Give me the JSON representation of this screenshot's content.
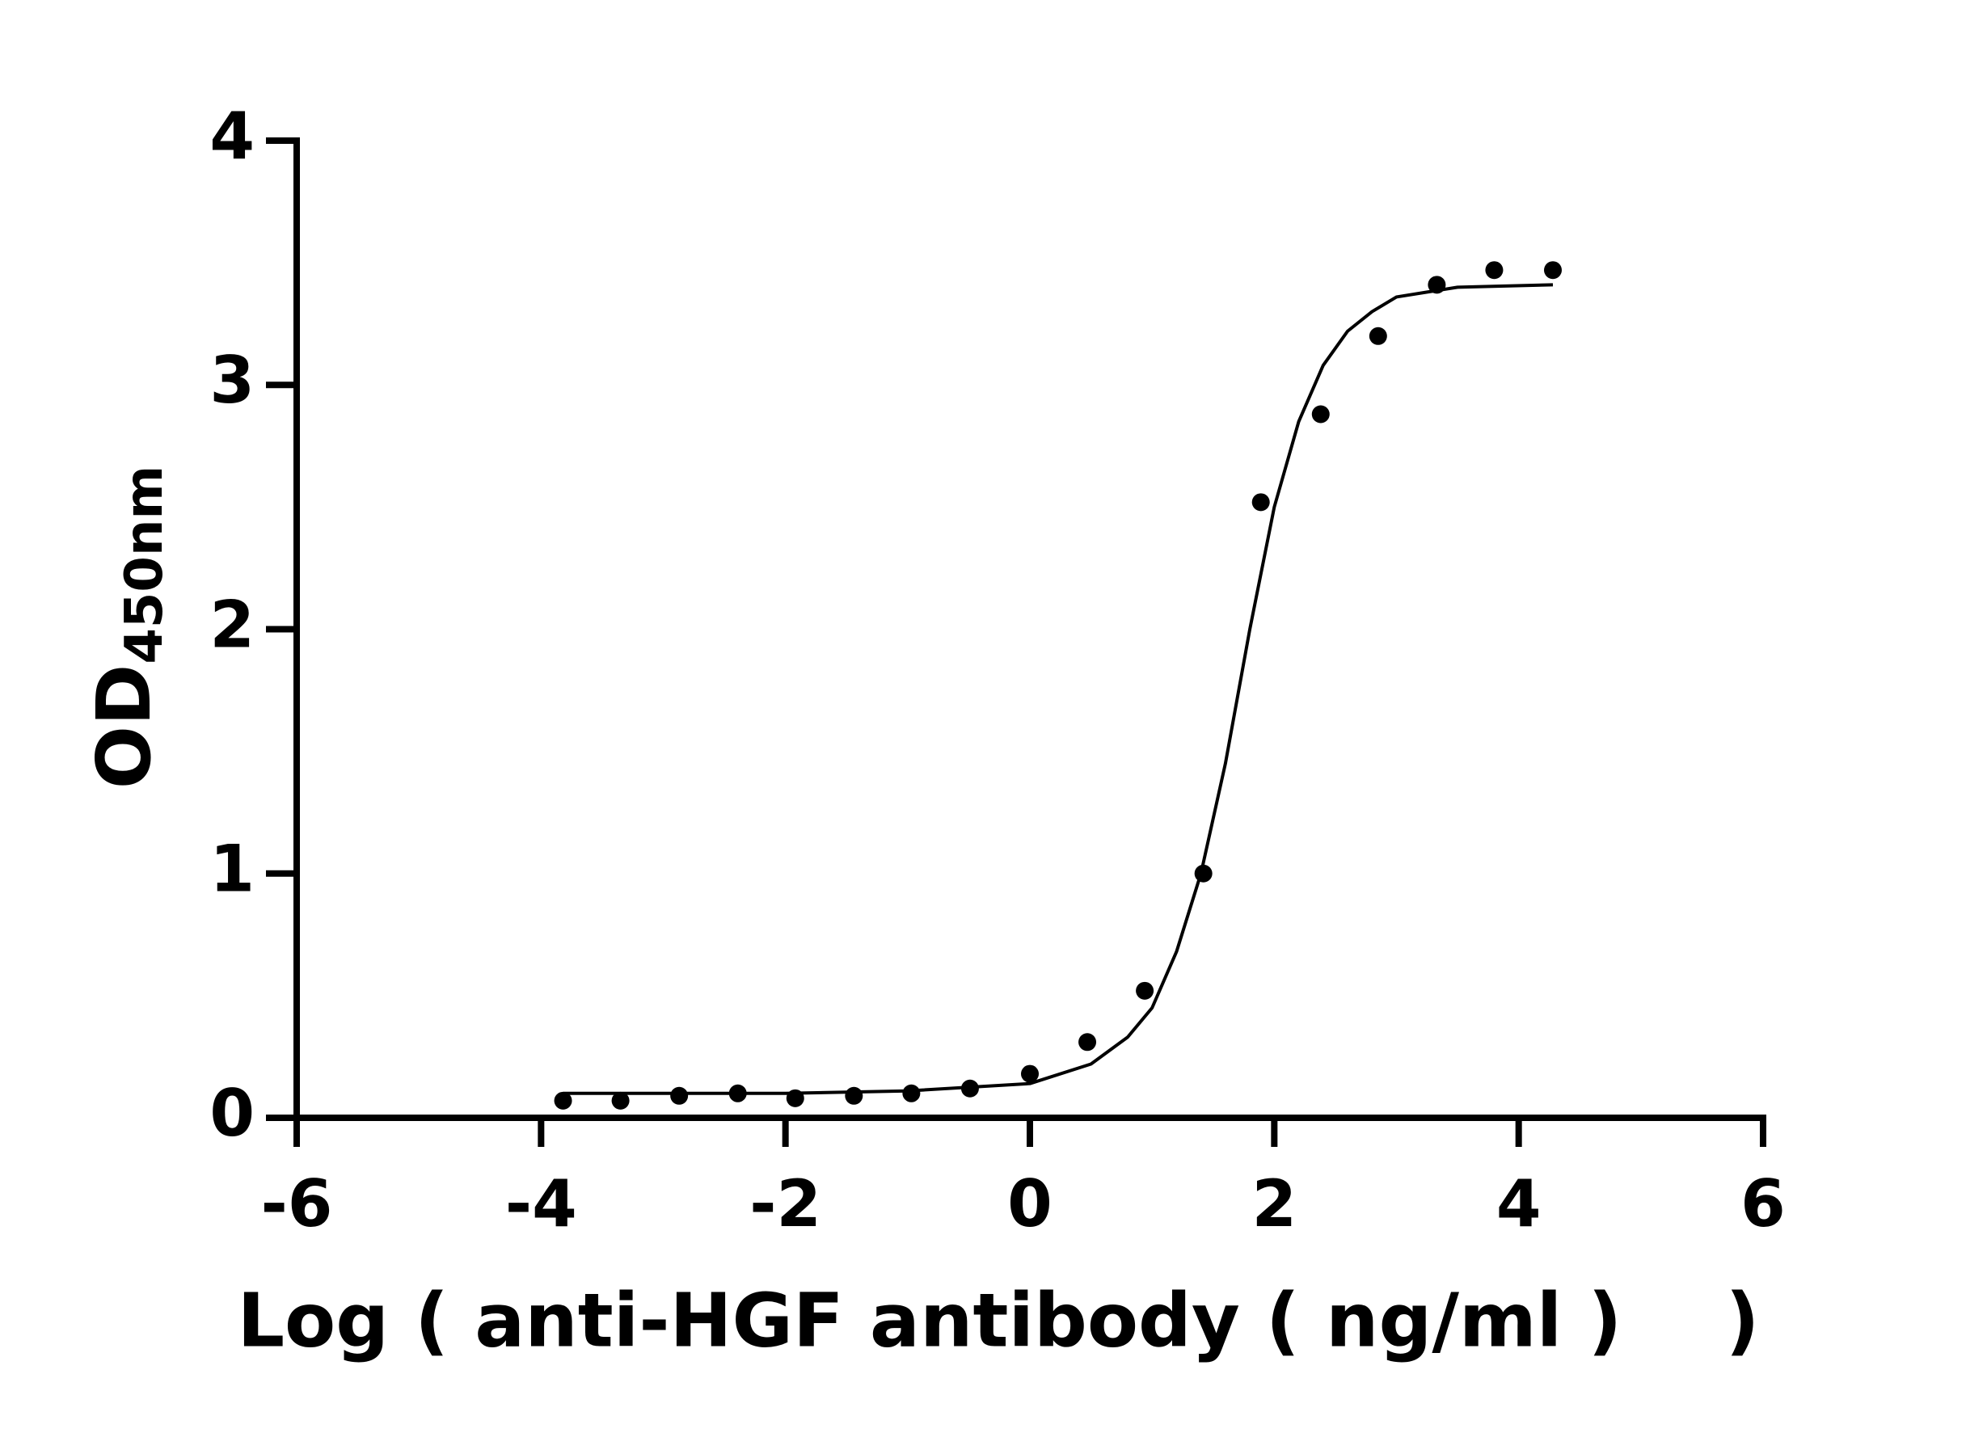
{
  "chart_data": {
    "type": "scatter",
    "x_label": "Log ( anti-HGF antibody ( ng/ml )    )",
    "y_label": "OD",
    "y_label_subscript": "450nm",
    "xlim": [
      -6,
      6
    ],
    "xticks": [
      -6,
      -4,
      -2,
      0,
      2,
      4,
      6
    ],
    "ylim": [
      0,
      4
    ],
    "yticks": [
      0,
      1,
      2,
      3,
      4
    ],
    "grid": false,
    "series": [
      {
        "type": "scatter",
        "color": "#000000",
        "x": [
          -3.82,
          -3.35,
          -2.87,
          -2.39,
          -1.92,
          -1.44,
          -0.97,
          -0.49,
          0,
          0.47,
          0.94,
          1.42,
          1.89,
          2.38,
          2.85,
          3.33,
          3.8,
          4.28
        ],
        "values": [
          0.07,
          0.07,
          0.09,
          0.1,
          0.08,
          0.09,
          0.1,
          0.12,
          0.18,
          0.31,
          0.52,
          1.0,
          2.52,
          2.88,
          3.2,
          3.41,
          3.47,
          3.47
        ]
      },
      {
        "type": "line",
        "color": "#000000",
        "x": [
          -3.82,
          -2,
          -1,
          0,
          0.5,
          0.8,
          1.0,
          1.2,
          1.4,
          1.6,
          1.8,
          2.0,
          2.2,
          2.4,
          2.6,
          2.8,
          3.0,
          3.5,
          4.28
        ],
        "values": [
          0.1,
          0.1,
          0.11,
          0.14,
          0.22,
          0.33,
          0.45,
          0.68,
          1.0,
          1.45,
          2.0,
          2.5,
          2.85,
          3.08,
          3.22,
          3.3,
          3.36,
          3.4,
          3.41
        ]
      }
    ]
  }
}
